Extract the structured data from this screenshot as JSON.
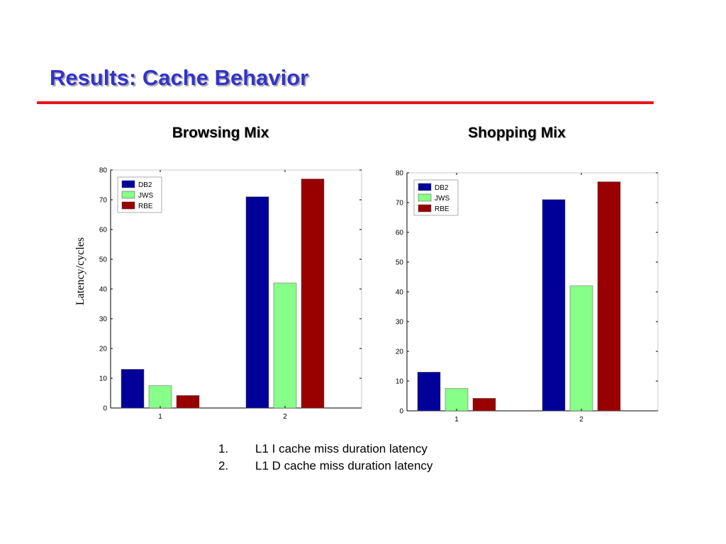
{
  "slide": {
    "title": "Results: Cache Behavior"
  },
  "colors": {
    "title": "#3333cc",
    "rule": "#e8141c",
    "db2": "#000099",
    "jws": "#88ff88",
    "rbe": "#990000"
  },
  "notes": [
    {
      "num": "1.",
      "text": "L1 I cache miss duration latency"
    },
    {
      "num": "2.",
      "text": "L1 D cache miss duration latency"
    }
  ],
  "chart_data": [
    {
      "type": "bar",
      "title": "Browsing Mix",
      "xlabel": "",
      "ylabel": "Latency/cycles",
      "categories": [
        "1",
        "2"
      ],
      "ylim": [
        0,
        80
      ],
      "yticks": [
        0,
        10,
        20,
        30,
        40,
        50,
        60,
        70,
        80
      ],
      "legend": "top-left",
      "grid": false,
      "series": [
        {
          "name": "DB2",
          "color": "#000099",
          "values": [
            13,
            71
          ]
        },
        {
          "name": "JWS",
          "color": "#88ff88",
          "values": [
            7.5,
            42
          ]
        },
        {
          "name": "RBE",
          "color": "#990000",
          "values": [
            4.2,
            77
          ]
        }
      ]
    },
    {
      "type": "bar",
      "title": "Shopping Mix",
      "xlabel": "",
      "ylabel": "",
      "categories": [
        "1",
        "2"
      ],
      "ylim": [
        0,
        80
      ],
      "yticks": [
        0,
        10,
        20,
        30,
        40,
        50,
        60,
        70,
        80
      ],
      "legend": "top-left",
      "grid": false,
      "series": [
        {
          "name": "DB2",
          "color": "#000099",
          "values": [
            13,
            71
          ]
        },
        {
          "name": "JWS",
          "color": "#88ff88",
          "values": [
            7.5,
            42
          ]
        },
        {
          "name": "RBE",
          "color": "#990000",
          "values": [
            4.2,
            77
          ]
        }
      ]
    }
  ]
}
